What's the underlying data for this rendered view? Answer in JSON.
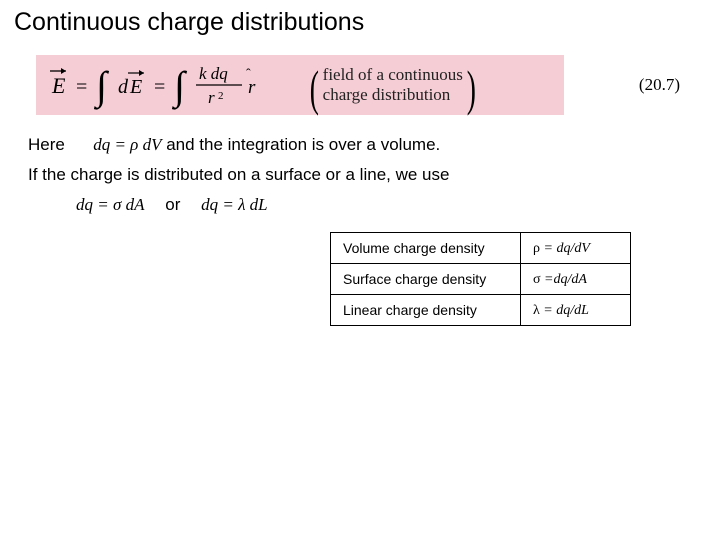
{
  "colors": {
    "background": "#ffffff",
    "equation_highlight": "#f4cdd5",
    "text": "#000000",
    "table_border": "#000000"
  },
  "typography": {
    "title_fontsize": 25,
    "body_fontsize": 17,
    "table_fontsize": 14,
    "body_font": "Comic Sans MS",
    "math_font": "Times New Roman"
  },
  "title": "Continuous charge distributions",
  "equation": {
    "number": "(20.7)",
    "lhs_symbol": "E",
    "description_line1": "field of a continuous",
    "description_line2": "charge distribution"
  },
  "here_label": "Here",
  "dq_volume": "dq = ρ dV",
  "here_tail": " and the integration is over a volume.",
  "surface_line": "If the charge is distributed on a surface or a line, we use",
  "dq_surface": "dq = σ dA",
  "or_label": "or",
  "dq_line": "dq = λ dL",
  "density_table": {
    "rows": [
      {
        "label": "Volume charge density",
        "expr_symbol": "ρ",
        "expr_tail": " = dq/dV"
      },
      {
        "label": "Surface charge density",
        "expr_symbol": "σ",
        "expr_tail": " =dq/dA"
      },
      {
        "label": "Linear charge density",
        "expr_symbol": "λ",
        "expr_tail": " = dq/dL"
      }
    ]
  }
}
